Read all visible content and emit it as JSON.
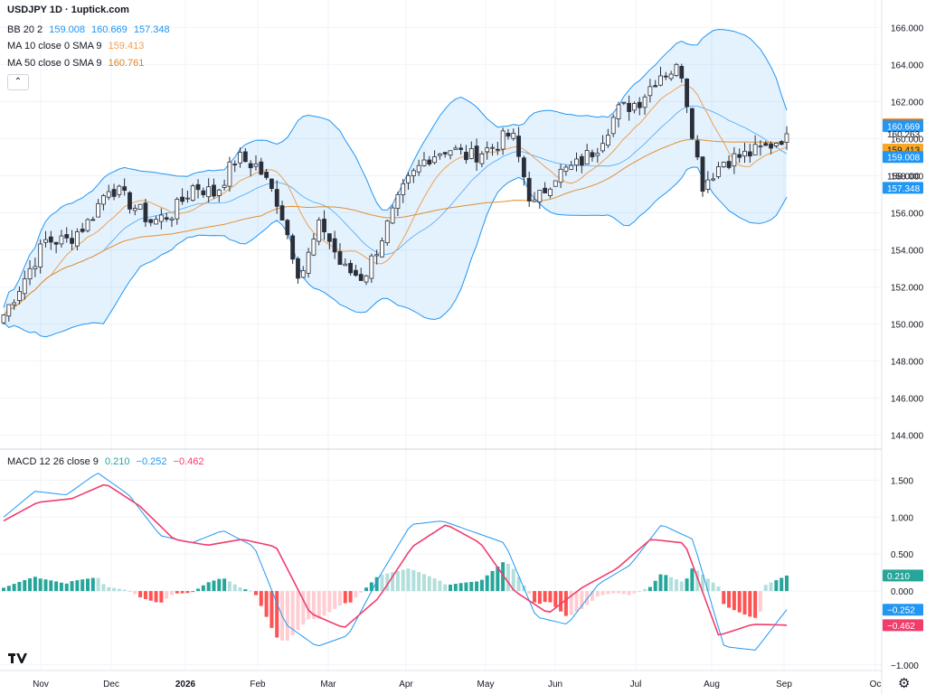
{
  "header": {
    "symbol_title": "USDJPY 1D · 1uptick.com"
  },
  "legend": {
    "bb": {
      "label": "BB 20 2",
      "values": [
        "159.008",
        "160.669",
        "157.348"
      ]
    },
    "ma10": {
      "label": "MA 10 close 0 SMA 9",
      "value": "159.413"
    },
    "ma50": {
      "label": "MA 50 close 0 SMA 9",
      "value": "160.761"
    },
    "collapse_glyph": "⌃"
  },
  "macd_legend": {
    "label": "MACD 12 26 close 9",
    "values": [
      "0.210",
      "−0.252",
      "−0.462"
    ]
  },
  "price_axis": {
    "ticks": [
      "166.000",
      "164.000",
      "162.000",
      "160.000",
      "158.000",
      "156.000",
      "154.000",
      "152.000",
      "150.000",
      "148.000",
      "146.000",
      "144.000"
    ],
    "badges": [
      {
        "text": "160.761",
        "price": 160.761,
        "bg": "#ef6c00",
        "fg": "#ffffff"
      },
      {
        "text": "160.669",
        "price": 160.669,
        "bg": "#2196f3",
        "fg": "#ffffff"
      },
      {
        "text": "160.263",
        "price": 160.263,
        "bg": "none",
        "fg": "#131722"
      },
      {
        "text": "159.413",
        "price": 159.413,
        "bg": "#f9a825",
        "fg": "#131722"
      },
      {
        "text": "159.008",
        "price": 159.008,
        "bg": "#2196f3",
        "fg": "#ffffff"
      },
      {
        "text": "158.000",
        "price": 158.0,
        "bg": "none",
        "fg": "#131722"
      },
      {
        "text": "157.348",
        "price": 157.348,
        "bg": "#2196f3",
        "fg": "#ffffff"
      }
    ]
  },
  "macd_axis": {
    "ticks": [
      "1.500",
      "1.000",
      "0.500",
      "0.000",
      "−1.000"
    ],
    "badges": [
      {
        "text": "0.210",
        "value": 0.21,
        "bg": "#26a69a",
        "fg": "#ffffff"
      },
      {
        "text": "−0.252",
        "value": -0.252,
        "bg": "#2196f3",
        "fg": "#ffffff"
      },
      {
        "text": "−0.462",
        "value": -0.462,
        "bg": "#f23c6c",
        "fg": "#ffffff"
      }
    ]
  },
  "time_axis": {
    "labels": [
      "Nov",
      "Dec",
      "2026",
      "Feb",
      "Mar",
      "Apr",
      "May",
      "Jun",
      "Jul",
      "Aug",
      "Sep",
      "Oc"
    ]
  },
  "icons": {
    "logo": "tradingview-logo-icon",
    "settings": "gear-icon",
    "collapse": "chevron-up-icon"
  },
  "colors": {
    "up_candle": "#ffffff",
    "down_candle": "#2a2e39",
    "bb_line": "#2196f3",
    "bb_fill": "rgba(33,150,243,0.12)",
    "ma10": "#f0a050",
    "ma50": "#e09030",
    "macd_line": "#2196f3",
    "signal_line": "#f23c6c",
    "hist_pos_strong": "#26a69a",
    "hist_pos_weak": "#b2dfdb",
    "hist_neg_strong": "#ff5252",
    "hist_neg_weak": "#ffcdd2"
  },
  "chart_data": [
    {
      "type": "candlestick",
      "title": "USDJPY 1D · 1uptick.com",
      "ylim": [
        143.5,
        166.5
      ],
      "x_categories": [
        "Nov",
        "Dec",
        "2026",
        "Feb",
        "Mar",
        "Apr",
        "May",
        "Jun",
        "Jul",
        "Aug",
        "Sep"
      ],
      "close_path": [
        [
          "Oct",
          150.5
        ],
        [
          "Oct",
          152.5
        ],
        [
          "Oct",
          154.5
        ],
        [
          "Nov",
          154.5
        ],
        [
          "Nov",
          155.5
        ],
        [
          "Nov",
          157.5
        ],
        [
          "Dec",
          156.5
        ],
        [
          "Dec",
          155.5
        ],
        [
          "Dec",
          156.0
        ],
        [
          "Dec",
          157.5
        ],
        [
          "2026",
          157.0
        ],
        [
          "2026",
          159.0
        ],
        [
          "Jan",
          158.5
        ],
        [
          "Jan",
          156.5
        ],
        [
          "Jan",
          152.5
        ],
        [
          "Jan",
          155.5
        ],
        [
          "Feb",
          153.0
        ],
        [
          "Feb",
          152.5
        ],
        [
          "Feb",
          155.0
        ],
        [
          "Mar",
          157.5
        ],
        [
          "Mar",
          159.0
        ],
        [
          "Mar",
          159.5
        ],
        [
          "Apr",
          159.0
        ],
        [
          "Apr",
          159.5
        ],
        [
          "Apr",
          160.3
        ],
        [
          "May",
          156.3
        ],
        [
          "May",
          158.0
        ],
        [
          "May",
          158.5
        ],
        [
          "Jun",
          159.5
        ],
        [
          "Jun",
          161.5
        ],
        [
          "Jul",
          162.0
        ],
        [
          "Jul",
          163.5
        ],
        [
          "Jul",
          163.8
        ],
        [
          "Jul",
          157.5
        ],
        [
          "Aug",
          158.8
        ],
        [
          "Aug",
          159.1
        ],
        [
          "Aug",
          159.5
        ],
        [
          "Sep",
          160.26
        ]
      ],
      "last_values": {
        "close": 160.263,
        "bb_upper": 160.669,
        "bb_basis": 159.008,
        "bb_lower": 157.348,
        "ma10": 159.413,
        "ma50": 160.761
      },
      "series": [
        {
          "name": "BB 20 2"
        },
        {
          "name": "MA 10 close 0 SMA 9"
        },
        {
          "name": "MA 50 close 0 SMA 9"
        }
      ]
    },
    {
      "type": "line",
      "title": "MACD 12 26 close 9",
      "ylim": [
        -1.05,
        1.7
      ],
      "x_categories": [
        "Nov",
        "Dec",
        "2026",
        "Feb",
        "Mar",
        "Apr",
        "May",
        "Jun",
        "Jul",
        "Aug",
        "Sep"
      ],
      "macd_path": [
        [
          "Oct",
          1.0
        ],
        [
          "Nov",
          1.35
        ],
        [
          "Nov",
          1.3
        ],
        [
          "Dec",
          1.6
        ],
        [
          "Dec",
          1.3
        ],
        [
          "Dec",
          0.75
        ],
        [
          "2026",
          0.65
        ],
        [
          "Jan",
          0.82
        ],
        [
          "Jan",
          0.6
        ],
        [
          "Feb",
          -0.45
        ],
        [
          "Feb",
          -0.75
        ],
        [
          "Feb",
          -0.6
        ],
        [
          "Mar",
          0.2
        ],
        [
          "Mar",
          0.9
        ],
        [
          "Apr",
          0.95
        ],
        [
          "Apr",
          0.8
        ],
        [
          "Apr",
          0.65
        ],
        [
          "May",
          -0.35
        ],
        [
          "May",
          -0.45
        ],
        [
          "Jun",
          0.1
        ],
        [
          "Jun",
          0.35
        ],
        [
          "Jul",
          0.9
        ],
        [
          "Jul",
          0.7
        ],
        [
          "Aug",
          -0.75
        ],
        [
          "Aug",
          -0.8
        ],
        [
          "Sep",
          -0.25
        ]
      ],
      "signal_path": [
        [
          "Oct",
          0.95
        ],
        [
          "Nov",
          1.2
        ],
        [
          "Nov",
          1.25
        ],
        [
          "Dec",
          1.45
        ],
        [
          "Dec",
          1.15
        ],
        [
          "Dec",
          0.7
        ],
        [
          "2026",
          0.62
        ],
        [
          "Jan",
          0.7
        ],
        [
          "Jan",
          0.6
        ],
        [
          "Feb",
          -0.3
        ],
        [
          "Feb",
          -0.5
        ],
        [
          "Mar",
          -0.1
        ],
        [
          "Mar",
          0.6
        ],
        [
          "Apr",
          0.9
        ],
        [
          "Apr",
          0.65
        ],
        [
          "May",
          0.0
        ],
        [
          "May",
          -0.3
        ],
        [
          "Jun",
          0.05
        ],
        [
          "Jun",
          0.3
        ],
        [
          "Jul",
          0.7
        ],
        [
          "Jul",
          0.65
        ],
        [
          "Aug",
          -0.6
        ],
        [
          "Aug",
          -0.45
        ],
        [
          "Sep",
          -0.46
        ]
      ],
      "histogram_last": 0.21,
      "series": [
        {
          "name": "MACD",
          "last": -0.252
        },
        {
          "name": "Signal",
          "last": -0.462
        },
        {
          "name": "Histogram",
          "last": 0.21
        }
      ]
    }
  ]
}
